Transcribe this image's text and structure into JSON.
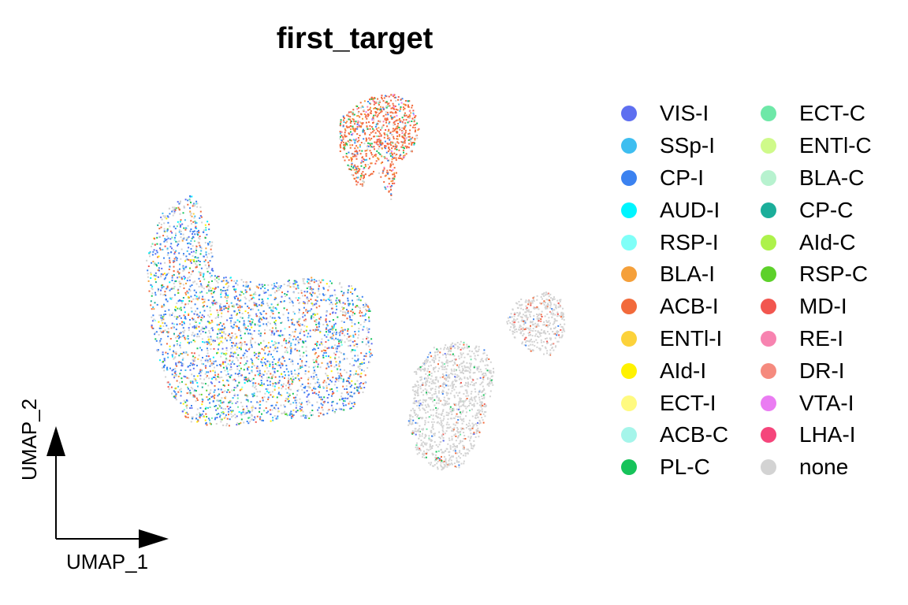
{
  "chart_data": {
    "type": "scatter",
    "title": "first_target",
    "xlabel": "UMAP_1",
    "ylabel": "UMAP_2",
    "grid": false,
    "legend_position": "right",
    "series": [
      {
        "name": "VIS-I",
        "color": "#5E6FF0"
      },
      {
        "name": "SSp-I",
        "color": "#3EBEF0"
      },
      {
        "name": "CP-I",
        "color": "#3B82F0"
      },
      {
        "name": "AUD-I",
        "color": "#00F5FF"
      },
      {
        "name": "RSP-I",
        "color": "#7FFFF8"
      },
      {
        "name": "BLA-I",
        "color": "#F5A03A"
      },
      {
        "name": "ACB-I",
        "color": "#F26A3B"
      },
      {
        "name": "ENTl-I",
        "color": "#FCD23A"
      },
      {
        "name": "AId-I",
        "color": "#FFF200"
      },
      {
        "name": "ECT-I",
        "color": "#FFFA80"
      },
      {
        "name": "ACB-C",
        "color": "#A5F5EA"
      },
      {
        "name": "PL-C",
        "color": "#16C35A"
      },
      {
        "name": "ECT-C",
        "color": "#6EE8A8"
      },
      {
        "name": "ENTl-C",
        "color": "#CFFA8A"
      },
      {
        "name": "BLA-C",
        "color": "#B7F2CF"
      },
      {
        "name": "CP-C",
        "color": "#1BAE9A"
      },
      {
        "name": "AId-C",
        "color": "#ADF24B"
      },
      {
        "name": "RSP-C",
        "color": "#5DD12A"
      },
      {
        "name": "MD-I",
        "color": "#F2564F"
      },
      {
        "name": "RE-I",
        "color": "#F783B0"
      },
      {
        "name": "DR-I",
        "color": "#F58A7E"
      },
      {
        "name": "VTA-I",
        "color": "#EA7CF2"
      },
      {
        "name": "LHA-I",
        "color": "#F5457B"
      },
      {
        "name": "none",
        "color": "#D3D3D3"
      }
    ]
  }
}
